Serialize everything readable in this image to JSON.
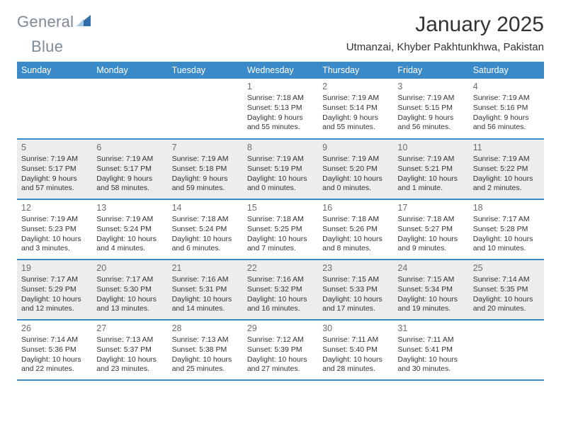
{
  "brand": {
    "part1": "General",
    "part2": "Blue",
    "logo_color": "#2f6ea8"
  },
  "header": {
    "month_title": "January 2025",
    "location": "Utmanzai, Khyber Pakhtunkhwa, Pakistan"
  },
  "style": {
    "header_bg": "#3a8ac9",
    "row_border": "#3a8ac9",
    "shaded_bg": "#ededed",
    "text_color": "#333333",
    "daynum_color": "#6d6d6d"
  },
  "weekdays": [
    "Sunday",
    "Monday",
    "Tuesday",
    "Wednesday",
    "Thursday",
    "Friday",
    "Saturday"
  ],
  "weeks": [
    {
      "shaded": false,
      "cells": [
        null,
        null,
        null,
        {
          "day": "1",
          "sunrise": "Sunrise: 7:18 AM",
          "sunset": "Sunset: 5:13 PM",
          "daylight": "Daylight: 9 hours and 55 minutes."
        },
        {
          "day": "2",
          "sunrise": "Sunrise: 7:19 AM",
          "sunset": "Sunset: 5:14 PM",
          "daylight": "Daylight: 9 hours and 55 minutes."
        },
        {
          "day": "3",
          "sunrise": "Sunrise: 7:19 AM",
          "sunset": "Sunset: 5:15 PM",
          "daylight": "Daylight: 9 hours and 56 minutes."
        },
        {
          "day": "4",
          "sunrise": "Sunrise: 7:19 AM",
          "sunset": "Sunset: 5:16 PM",
          "daylight": "Daylight: 9 hours and 56 minutes."
        }
      ]
    },
    {
      "shaded": true,
      "cells": [
        {
          "day": "5",
          "sunrise": "Sunrise: 7:19 AM",
          "sunset": "Sunset: 5:17 PM",
          "daylight": "Daylight: 9 hours and 57 minutes."
        },
        {
          "day": "6",
          "sunrise": "Sunrise: 7:19 AM",
          "sunset": "Sunset: 5:17 PM",
          "daylight": "Daylight: 9 hours and 58 minutes."
        },
        {
          "day": "7",
          "sunrise": "Sunrise: 7:19 AM",
          "sunset": "Sunset: 5:18 PM",
          "daylight": "Daylight: 9 hours and 59 minutes."
        },
        {
          "day": "8",
          "sunrise": "Sunrise: 7:19 AM",
          "sunset": "Sunset: 5:19 PM",
          "daylight": "Daylight: 10 hours and 0 minutes."
        },
        {
          "day": "9",
          "sunrise": "Sunrise: 7:19 AM",
          "sunset": "Sunset: 5:20 PM",
          "daylight": "Daylight: 10 hours and 0 minutes."
        },
        {
          "day": "10",
          "sunrise": "Sunrise: 7:19 AM",
          "sunset": "Sunset: 5:21 PM",
          "daylight": "Daylight: 10 hours and 1 minute."
        },
        {
          "day": "11",
          "sunrise": "Sunrise: 7:19 AM",
          "sunset": "Sunset: 5:22 PM",
          "daylight": "Daylight: 10 hours and 2 minutes."
        }
      ]
    },
    {
      "shaded": false,
      "cells": [
        {
          "day": "12",
          "sunrise": "Sunrise: 7:19 AM",
          "sunset": "Sunset: 5:23 PM",
          "daylight": "Daylight: 10 hours and 3 minutes."
        },
        {
          "day": "13",
          "sunrise": "Sunrise: 7:19 AM",
          "sunset": "Sunset: 5:24 PM",
          "daylight": "Daylight: 10 hours and 4 minutes."
        },
        {
          "day": "14",
          "sunrise": "Sunrise: 7:18 AM",
          "sunset": "Sunset: 5:24 PM",
          "daylight": "Daylight: 10 hours and 6 minutes."
        },
        {
          "day": "15",
          "sunrise": "Sunrise: 7:18 AM",
          "sunset": "Sunset: 5:25 PM",
          "daylight": "Daylight: 10 hours and 7 minutes."
        },
        {
          "day": "16",
          "sunrise": "Sunrise: 7:18 AM",
          "sunset": "Sunset: 5:26 PM",
          "daylight": "Daylight: 10 hours and 8 minutes."
        },
        {
          "day": "17",
          "sunrise": "Sunrise: 7:18 AM",
          "sunset": "Sunset: 5:27 PM",
          "daylight": "Daylight: 10 hours and 9 minutes."
        },
        {
          "day": "18",
          "sunrise": "Sunrise: 7:17 AM",
          "sunset": "Sunset: 5:28 PM",
          "daylight": "Daylight: 10 hours and 10 minutes."
        }
      ]
    },
    {
      "shaded": true,
      "cells": [
        {
          "day": "19",
          "sunrise": "Sunrise: 7:17 AM",
          "sunset": "Sunset: 5:29 PM",
          "daylight": "Daylight: 10 hours and 12 minutes."
        },
        {
          "day": "20",
          "sunrise": "Sunrise: 7:17 AM",
          "sunset": "Sunset: 5:30 PM",
          "daylight": "Daylight: 10 hours and 13 minutes."
        },
        {
          "day": "21",
          "sunrise": "Sunrise: 7:16 AM",
          "sunset": "Sunset: 5:31 PM",
          "daylight": "Daylight: 10 hours and 14 minutes."
        },
        {
          "day": "22",
          "sunrise": "Sunrise: 7:16 AM",
          "sunset": "Sunset: 5:32 PM",
          "daylight": "Daylight: 10 hours and 16 minutes."
        },
        {
          "day": "23",
          "sunrise": "Sunrise: 7:15 AM",
          "sunset": "Sunset: 5:33 PM",
          "daylight": "Daylight: 10 hours and 17 minutes."
        },
        {
          "day": "24",
          "sunrise": "Sunrise: 7:15 AM",
          "sunset": "Sunset: 5:34 PM",
          "daylight": "Daylight: 10 hours and 19 minutes."
        },
        {
          "day": "25",
          "sunrise": "Sunrise: 7:14 AM",
          "sunset": "Sunset: 5:35 PM",
          "daylight": "Daylight: 10 hours and 20 minutes."
        }
      ]
    },
    {
      "shaded": false,
      "cells": [
        {
          "day": "26",
          "sunrise": "Sunrise: 7:14 AM",
          "sunset": "Sunset: 5:36 PM",
          "daylight": "Daylight: 10 hours and 22 minutes."
        },
        {
          "day": "27",
          "sunrise": "Sunrise: 7:13 AM",
          "sunset": "Sunset: 5:37 PM",
          "daylight": "Daylight: 10 hours and 23 minutes."
        },
        {
          "day": "28",
          "sunrise": "Sunrise: 7:13 AM",
          "sunset": "Sunset: 5:38 PM",
          "daylight": "Daylight: 10 hours and 25 minutes."
        },
        {
          "day": "29",
          "sunrise": "Sunrise: 7:12 AM",
          "sunset": "Sunset: 5:39 PM",
          "daylight": "Daylight: 10 hours and 27 minutes."
        },
        {
          "day": "30",
          "sunrise": "Sunrise: 7:11 AM",
          "sunset": "Sunset: 5:40 PM",
          "daylight": "Daylight: 10 hours and 28 minutes."
        },
        {
          "day": "31",
          "sunrise": "Sunrise: 7:11 AM",
          "sunset": "Sunset: 5:41 PM",
          "daylight": "Daylight: 10 hours and 30 minutes."
        },
        null
      ]
    }
  ]
}
